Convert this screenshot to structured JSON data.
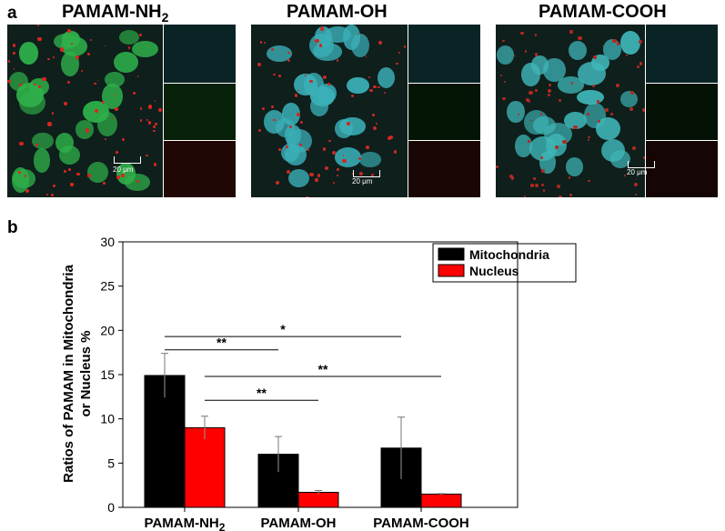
{
  "panel_a": {
    "letter": "a",
    "images": [
      {
        "title_main": "PAMAM-NH",
        "title_sub": "2",
        "scale": "20 μm",
        "cell_color": "#2fb04a",
        "dot_color": "#d8261e"
      },
      {
        "title_main": "PAMAM-OH",
        "title_sub": "",
        "scale": "20 μm",
        "cell_color": "#3bb0b8",
        "dot_color": "#c92a22"
      },
      {
        "title_main": "PAMAM-COOH",
        "title_sub": "",
        "scale": "20 μm",
        "cell_color": "#3fb6b8",
        "dot_color": "#b5281f"
      }
    ]
  },
  "panel_b": {
    "letter": "b"
  },
  "chart_data": {
    "type": "bar",
    "categories": [
      "PAMAM-NH2",
      "PAMAM-OH",
      "PAMAM-COOH"
    ],
    "category_display": [
      {
        "main": "PAMAM-NH",
        "sub": "2"
      },
      {
        "main": "PAMAM-OH",
        "sub": ""
      },
      {
        "main": "PAMAM-COOH",
        "sub": ""
      }
    ],
    "series": [
      {
        "name": "Mitochondria",
        "color": "#000000",
        "values": [
          14.9,
          6.0,
          6.7
        ],
        "errors": [
          2.5,
          2.0,
          3.5
        ]
      },
      {
        "name": "Nucleus",
        "color": "#ff0000",
        "values": [
          9.0,
          1.7,
          1.5
        ],
        "errors": [
          1.3,
          0.2,
          0.05
        ]
      }
    ],
    "ylabel_line1": "Ratios of PAMAM in Mitochondria",
    "ylabel_line2": "or Nucleus %",
    "ylim": [
      0,
      30
    ],
    "yticks": [
      "0",
      "5",
      "10",
      "15",
      "20",
      "25",
      "30"
    ],
    "legend_position": "top-right",
    "significance": [
      {
        "label": "*",
        "y": 19.3,
        "from": "PAMAM-NH2 Mitochondria",
        "to": "PAMAM-COOH Mitochondria"
      },
      {
        "label": "**",
        "y": 17.8,
        "from": "PAMAM-NH2 Mitochondria",
        "to": "PAMAM-OH Mitochondria"
      },
      {
        "label": "**",
        "y": 14.8,
        "from": "PAMAM-NH2 Nucleus",
        "to": "PAMAM-COOH Nucleus"
      },
      {
        "label": "**",
        "y": 12.1,
        "from": "PAMAM-NH2 Nucleus",
        "to": "PAMAM-OH Nucleus"
      }
    ]
  }
}
